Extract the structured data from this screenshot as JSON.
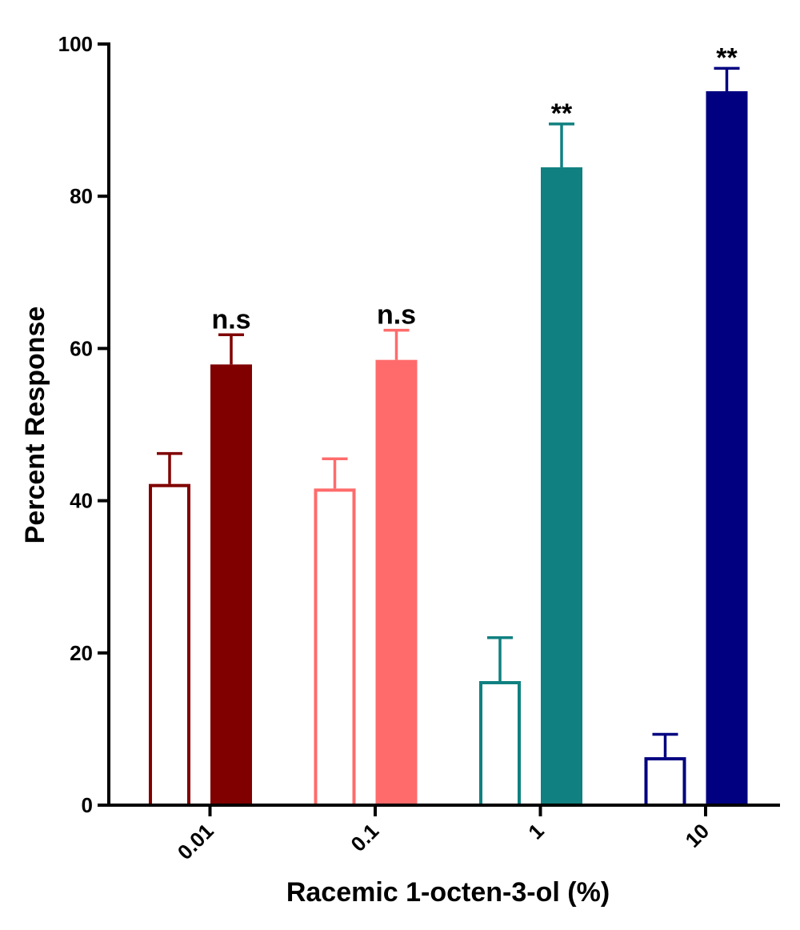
{
  "chart_data": {
    "type": "bar",
    "title": "",
    "xlabel": "Racemic 1-octen-3-ol (%)",
    "ylabel": "Percent Response",
    "ylim": [
      0,
      100
    ],
    "yticks": [
      "0",
      "20",
      "40",
      "60",
      "80",
      "100"
    ],
    "categories": [
      "0.01",
      "0.1",
      "1",
      "10"
    ],
    "groups": [
      {
        "category": "0.01",
        "color": "#800000",
        "bars": [
          {
            "style": "open",
            "value": 42.2,
            "error": 4.0
          },
          {
            "style": "filled",
            "value": 57.9,
            "error": 3.9
          }
        ],
        "annotation": "n.s"
      },
      {
        "category": "0.1",
        "color": "#FF6B6B",
        "bars": [
          {
            "style": "open",
            "value": 41.6,
            "error": 3.9
          },
          {
            "style": "filled",
            "value": 58.5,
            "error": 3.9
          }
        ],
        "annotation": "n.s"
      },
      {
        "category": "1",
        "color": "#108080",
        "bars": [
          {
            "style": "open",
            "value": 16.3,
            "error": 5.7
          },
          {
            "style": "filled",
            "value": 83.8,
            "error": 5.7
          }
        ],
        "annotation": "**"
      },
      {
        "category": "10",
        "color": "#000080",
        "bars": [
          {
            "style": "open",
            "value": 6.3,
            "error": 3.0
          },
          {
            "style": "filled",
            "value": 93.8,
            "error": 3.0
          }
        ],
        "annotation": "**"
      }
    ],
    "grid": false,
    "legend": "none"
  }
}
